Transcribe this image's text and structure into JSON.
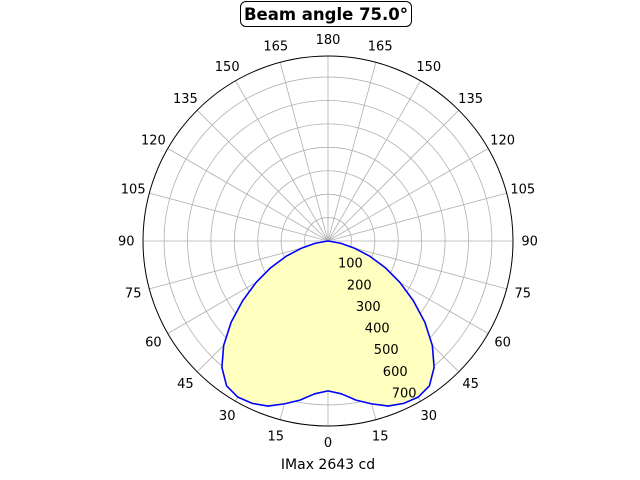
{
  "chart_data": {
    "type": "polar",
    "title": "Beam angle 75.0°",
    "xlabel": "IMax 2643 cd",
    "angle_tick_labels": [
      "0",
      "15",
      "30",
      "45",
      "60",
      "75",
      "90",
      "105",
      "120",
      "135",
      "150",
      "165",
      "180",
      "165",
      "150",
      "135",
      "120",
      "105",
      "90",
      "75",
      "60",
      "45",
      "30",
      "15"
    ],
    "angle_tick_values_deg": [
      0,
      15,
      30,
      45,
      60,
      75,
      90,
      105,
      120,
      135,
      150,
      165,
      180,
      195,
      210,
      225,
      240,
      255,
      270,
      285,
      300,
      315,
      330,
      345
    ],
    "radial_ticks": [
      100,
      200,
      300,
      400,
      500,
      600,
      700
    ],
    "radial_max": 790,
    "zero_direction": "bottom",
    "grid": true,
    "series": [
      {
        "gamma_deg": [
          0,
          5,
          10,
          15,
          20,
          25,
          30,
          35,
          40,
          45,
          50,
          55,
          60,
          65,
          70,
          75,
          80,
          90
        ],
        "values": [
          640,
          655,
          690,
          720,
          750,
          765,
          770,
          755,
          705,
          630,
          540,
          445,
          355,
          270,
          190,
          115,
          55,
          0
        ]
      }
    ],
    "colors": {
      "line": "#0000ff",
      "fill": "#ffffc0",
      "grid": "#b0b0b0",
      "frame": "#000000"
    }
  }
}
